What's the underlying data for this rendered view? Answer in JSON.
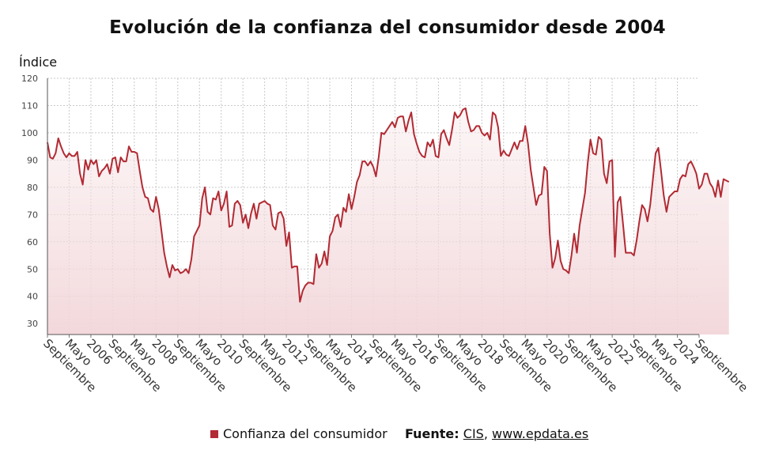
{
  "title": "Evolución de la confianza del consumidor desde 2004",
  "ylabel": "Índice",
  "legend": {
    "label": "Confianza del consumidor",
    "color": "#b22a33"
  },
  "source": {
    "prefix": "Fuente:",
    "link1": "CIS",
    "sep": ",",
    "link2": "www.epdata.es"
  },
  "chart_data": {
    "type": "area",
    "title": "Evolución de la confianza del consumidor desde 2004",
    "ylabel": "Índice",
    "ylim": [
      26,
      120
    ],
    "yticks": [
      30,
      40,
      50,
      60,
      70,
      80,
      90,
      100,
      110,
      120
    ],
    "grid": true,
    "legend_position": "bottom",
    "line_color": "#b22a33",
    "xlim": [
      2004.667,
      2024.667
    ],
    "xticks": [
      {
        "x": 2004.667,
        "label": "Septiembre"
      },
      {
        "x": 2005.333,
        "label": "Mayo"
      },
      {
        "x": 2006.0,
        "label": "2006"
      },
      {
        "x": 2006.667,
        "label": "Septiembre"
      },
      {
        "x": 2007.333,
        "label": "Mayo"
      },
      {
        "x": 2008.0,
        "label": "2008"
      },
      {
        "x": 2008.667,
        "label": "Septiembre"
      },
      {
        "x": 2009.333,
        "label": "Mayo"
      },
      {
        "x": 2010.0,
        "label": "2010"
      },
      {
        "x": 2010.667,
        "label": "Septiembre"
      },
      {
        "x": 2011.333,
        "label": "Mayo"
      },
      {
        "x": 2012.0,
        "label": "2012"
      },
      {
        "x": 2012.667,
        "label": "Septiembre"
      },
      {
        "x": 2013.333,
        "label": "Mayo"
      },
      {
        "x": 2014.0,
        "label": "2014"
      },
      {
        "x": 2014.667,
        "label": "Septiembre"
      },
      {
        "x": 2015.333,
        "label": "Mayo"
      },
      {
        "x": 2016.0,
        "label": "2016"
      },
      {
        "x": 2016.667,
        "label": "Septiembre"
      },
      {
        "x": 2017.333,
        "label": "Mayo"
      },
      {
        "x": 2018.0,
        "label": "2018"
      },
      {
        "x": 2018.667,
        "label": "Septiembre"
      },
      {
        "x": 2019.333,
        "label": "Mayo"
      },
      {
        "x": 2020.0,
        "label": "2020"
      },
      {
        "x": 2020.667,
        "label": "Septiembre"
      },
      {
        "x": 2021.333,
        "label": "Mayo"
      },
      {
        "x": 2022.0,
        "label": "2022"
      },
      {
        "x": 2022.667,
        "label": "Septiembre"
      },
      {
        "x": 2023.333,
        "label": "Mayo"
      },
      {
        "x": 2024.0,
        "label": "2024"
      },
      {
        "x": 2024.667,
        "label": "Septiembre"
      }
    ],
    "series": [
      {
        "name": "Confianza del consumidor",
        "points": [
          [
            2004.667,
            96.5
          ],
          [
            2004.75,
            91
          ],
          [
            2004.833,
            90.5
          ],
          [
            2004.917,
            92.5
          ],
          [
            2005.0,
            98
          ],
          [
            2005.083,
            95
          ],
          [
            2005.167,
            92.5
          ],
          [
            2005.25,
            91
          ],
          [
            2005.333,
            92.5
          ],
          [
            2005.417,
            91.5
          ],
          [
            2005.5,
            91.5
          ],
          [
            2005.583,
            93
          ],
          [
            2005.667,
            85
          ],
          [
            2005.75,
            81
          ],
          [
            2005.833,
            90
          ],
          [
            2005.917,
            86.5
          ],
          [
            2006.0,
            90
          ],
          [
            2006.083,
            88.5
          ],
          [
            2006.167,
            90
          ],
          [
            2006.25,
            84
          ],
          [
            2006.333,
            86
          ],
          [
            2006.417,
            87
          ],
          [
            2006.5,
            88.5
          ],
          [
            2006.583,
            85
          ],
          [
            2006.667,
            90.5
          ],
          [
            2006.75,
            91
          ],
          [
            2006.833,
            85.5
          ],
          [
            2006.917,
            91
          ],
          [
            2007.0,
            89.5
          ],
          [
            2007.083,
            89.5
          ],
          [
            2007.167,
            95
          ],
          [
            2007.25,
            93
          ],
          [
            2007.333,
            93
          ],
          [
            2007.417,
            92.5
          ],
          [
            2007.5,
            86
          ],
          [
            2007.583,
            80
          ],
          [
            2007.667,
            76.5
          ],
          [
            2007.75,
            76
          ],
          [
            2007.833,
            72
          ],
          [
            2007.917,
            71
          ],
          [
            2008.0,
            76.5
          ],
          [
            2008.083,
            72
          ],
          [
            2008.167,
            64
          ],
          [
            2008.25,
            56
          ],
          [
            2008.333,
            51
          ],
          [
            2008.417,
            47
          ],
          [
            2008.5,
            51.5
          ],
          [
            2008.583,
            49.5
          ],
          [
            2008.667,
            50
          ],
          [
            2008.75,
            48.5
          ],
          [
            2008.833,
            49
          ],
          [
            2008.917,
            50
          ],
          [
            2009.0,
            48.5
          ],
          [
            2009.083,
            53.5
          ],
          [
            2009.167,
            62
          ],
          [
            2009.25,
            64
          ],
          [
            2009.333,
            66
          ],
          [
            2009.417,
            76
          ],
          [
            2009.5,
            80
          ],
          [
            2009.583,
            71
          ],
          [
            2009.667,
            70
          ],
          [
            2009.75,
            76
          ],
          [
            2009.833,
            75.5
          ],
          [
            2009.917,
            78.5
          ],
          [
            2010.0,
            71.5
          ],
          [
            2010.083,
            74
          ],
          [
            2010.167,
            78.5
          ],
          [
            2010.25,
            65.5
          ],
          [
            2010.333,
            66
          ],
          [
            2010.417,
            74
          ],
          [
            2010.5,
            75
          ],
          [
            2010.583,
            73.5
          ],
          [
            2010.667,
            67
          ],
          [
            2010.75,
            70
          ],
          [
            2010.833,
            65
          ],
          [
            2010.917,
            70.5
          ],
          [
            2011.0,
            74
          ],
          [
            2011.083,
            68.5
          ],
          [
            2011.167,
            74
          ],
          [
            2011.25,
            74.5
          ],
          [
            2011.333,
            75
          ],
          [
            2011.417,
            74
          ],
          [
            2011.5,
            73.5
          ],
          [
            2011.583,
            66
          ],
          [
            2011.667,
            64.5
          ],
          [
            2011.75,
            70.5
          ],
          [
            2011.833,
            71
          ],
          [
            2011.917,
            68.5
          ],
          [
            2012.0,
            58.5
          ],
          [
            2012.083,
            63.5
          ],
          [
            2012.167,
            50.5
          ],
          [
            2012.25,
            51
          ],
          [
            2012.333,
            51
          ],
          [
            2012.417,
            38
          ],
          [
            2012.5,
            42
          ],
          [
            2012.583,
            44
          ],
          [
            2012.667,
            45
          ],
          [
            2012.75,
            45
          ],
          [
            2012.833,
            44.5
          ],
          [
            2012.917,
            55.5
          ],
          [
            2013.0,
            50.5
          ],
          [
            2013.083,
            52
          ],
          [
            2013.167,
            56.5
          ],
          [
            2013.25,
            51.5
          ],
          [
            2013.333,
            62
          ],
          [
            2013.417,
            64
          ],
          [
            2013.5,
            69
          ],
          [
            2013.583,
            70
          ],
          [
            2013.667,
            65.5
          ],
          [
            2013.75,
            72.5
          ],
          [
            2013.833,
            71
          ],
          [
            2013.917,
            77.5
          ],
          [
            2014.0,
            72
          ],
          [
            2014.083,
            76.5
          ],
          [
            2014.167,
            82
          ],
          [
            2014.25,
            84.5
          ],
          [
            2014.333,
            89.5
          ],
          [
            2014.417,
            89.5
          ],
          [
            2014.5,
            88
          ],
          [
            2014.583,
            89.5
          ],
          [
            2014.667,
            87.5
          ],
          [
            2014.75,
            84
          ],
          [
            2014.833,
            91
          ],
          [
            2014.917,
            100
          ],
          [
            2015.0,
            99.5
          ],
          [
            2015.083,
            101
          ],
          [
            2015.167,
            102.5
          ],
          [
            2015.25,
            104
          ],
          [
            2015.333,
            102
          ],
          [
            2015.417,
            105.5
          ],
          [
            2015.5,
            106
          ],
          [
            2015.583,
            106
          ],
          [
            2015.667,
            100.5
          ],
          [
            2015.75,
            104.5
          ],
          [
            2015.833,
            107.5
          ],
          [
            2015.917,
            99.5
          ],
          [
            2016.0,
            96
          ],
          [
            2016.083,
            93
          ],
          [
            2016.167,
            91.5
          ],
          [
            2016.25,
            91
          ],
          [
            2016.333,
            96.5
          ],
          [
            2016.417,
            95
          ],
          [
            2016.5,
            97.5
          ],
          [
            2016.583,
            91.5
          ],
          [
            2016.667,
            91
          ],
          [
            2016.75,
            99.5
          ],
          [
            2016.833,
            101
          ],
          [
            2016.917,
            98
          ],
          [
            2017.0,
            95.5
          ],
          [
            2017.083,
            101
          ],
          [
            2017.167,
            107.5
          ],
          [
            2017.25,
            105.5
          ],
          [
            2017.333,
            106.5
          ],
          [
            2017.417,
            108.5
          ],
          [
            2017.5,
            109
          ],
          [
            2017.583,
            104
          ],
          [
            2017.667,
            100.5
          ],
          [
            2017.75,
            101
          ],
          [
            2017.833,
            102.5
          ],
          [
            2017.917,
            102.5
          ],
          [
            2018.0,
            100
          ],
          [
            2018.083,
            99
          ],
          [
            2018.167,
            100
          ],
          [
            2018.25,
            97.5
          ],
          [
            2018.333,
            107.5
          ],
          [
            2018.417,
            106.5
          ],
          [
            2018.5,
            102
          ],
          [
            2018.583,
            91.5
          ],
          [
            2018.667,
            93.5
          ],
          [
            2018.75,
            92
          ],
          [
            2018.833,
            91.5
          ],
          [
            2018.917,
            94
          ],
          [
            2019.0,
            96.5
          ],
          [
            2019.083,
            94
          ],
          [
            2019.167,
            97
          ],
          [
            2019.25,
            97
          ],
          [
            2019.333,
            102.5
          ],
          [
            2019.417,
            96
          ],
          [
            2019.5,
            86.5
          ],
          [
            2019.583,
            80
          ],
          [
            2019.667,
            73.5
          ],
          [
            2019.75,
            77
          ],
          [
            2019.833,
            77.5
          ],
          [
            2019.917,
            87.5
          ],
          [
            2020.0,
            86
          ],
          [
            2020.083,
            63
          ],
          [
            2020.167,
            50.5
          ],
          [
            2020.25,
            54
          ],
          [
            2020.333,
            60.5
          ],
          [
            2020.417,
            53
          ],
          [
            2020.5,
            50
          ],
          [
            2020.583,
            49.5
          ],
          [
            2020.667,
            48.5
          ],
          [
            2020.75,
            55
          ],
          [
            2020.833,
            63
          ],
          [
            2020.917,
            56
          ],
          [
            2021.0,
            66
          ],
          [
            2021.083,
            72
          ],
          [
            2021.167,
            78
          ],
          [
            2021.25,
            89
          ],
          [
            2021.333,
            97.5
          ],
          [
            2021.417,
            92.5
          ],
          [
            2021.5,
            92
          ],
          [
            2021.583,
            98.5
          ],
          [
            2021.667,
            97.5
          ],
          [
            2021.75,
            85
          ],
          [
            2021.833,
            81.5
          ],
          [
            2021.917,
            89.5
          ],
          [
            2022.0,
            90
          ],
          [
            2022.083,
            54.5
          ],
          [
            2022.167,
            74.5
          ],
          [
            2022.25,
            76.5
          ],
          [
            2022.333,
            66.5
          ],
          [
            2022.417,
            56
          ],
          [
            2022.5,
            56
          ],
          [
            2022.583,
            56
          ],
          [
            2022.667,
            55
          ],
          [
            2022.75,
            60.5
          ],
          [
            2022.833,
            67.5
          ],
          [
            2022.917,
            73.5
          ],
          [
            2023.0,
            72
          ],
          [
            2023.083,
            67.5
          ],
          [
            2023.167,
            73.5
          ],
          [
            2023.25,
            83
          ],
          [
            2023.333,
            92.5
          ],
          [
            2023.417,
            94.5
          ],
          [
            2023.5,
            86
          ],
          [
            2023.583,
            77
          ],
          [
            2023.667,
            71
          ],
          [
            2023.75,
            76.5
          ],
          [
            2023.833,
            77.5
          ],
          [
            2023.917,
            78.5
          ],
          [
            2024.0,
            78.5
          ],
          [
            2024.083,
            83
          ],
          [
            2024.167,
            84.5
          ],
          [
            2024.25,
            84
          ],
          [
            2024.333,
            88.5
          ],
          [
            2024.417,
            89.5
          ],
          [
            2024.5,
            87.5
          ],
          [
            2024.583,
            85
          ],
          [
            2024.667,
            79.5
          ],
          [
            2024.75,
            81
          ],
          [
            2024.833,
            85
          ],
          [
            2024.917,
            85
          ],
          [
            2025.0,
            81.5
          ],
          [
            2025.083,
            80
          ],
          [
            2025.167,
            76.5
          ],
          [
            2025.25,
            82.5
          ],
          [
            2025.333,
            76.5
          ],
          [
            2025.417,
            83
          ],
          [
            2025.5,
            82.5
          ],
          [
            2025.583,
            82
          ]
        ]
      }
    ]
  }
}
